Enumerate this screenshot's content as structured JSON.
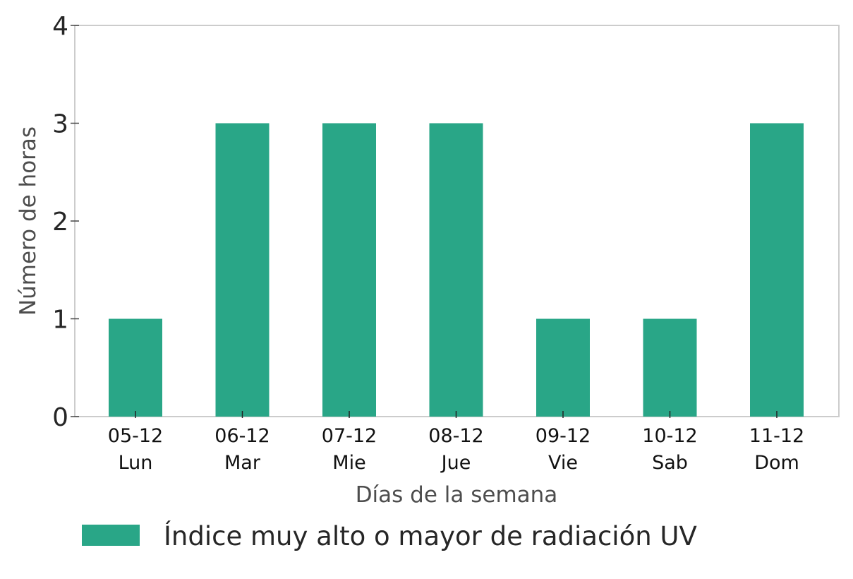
{
  "chart_data": {
    "type": "bar",
    "categories": [
      [
        "05-12",
        "Lun"
      ],
      [
        "06-12",
        "Mar"
      ],
      [
        "07-12",
        "Mie"
      ],
      [
        "08-12",
        "Jue"
      ],
      [
        "09-12",
        "Vie"
      ],
      [
        "10-12",
        "Sab"
      ],
      [
        "11-12",
        "Dom"
      ]
    ],
    "series": [
      {
        "name": "Índice muy alto o mayor de radiación UV",
        "values": [
          1,
          3,
          3,
          3,
          1,
          1,
          3
        ],
        "color": "#29a687"
      }
    ],
    "xlabel": "Días de la semana",
    "ylabel": "Número de horas",
    "ylim": [
      0,
      4
    ],
    "yticks": [
      0,
      1,
      2,
      3,
      4
    ],
    "grid": false,
    "legend_position": "bottom-left"
  }
}
